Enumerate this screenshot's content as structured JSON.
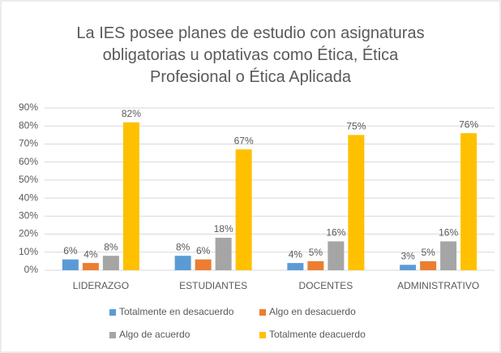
{
  "chart_data": {
    "type": "bar",
    "title": "La IES posee planes de estudio con asignaturas obligatorias u optativas como Ética, Ética Profesional o Ética Aplicada",
    "categories": [
      "LIDERAZGO",
      "ESTUDIANTES",
      "DOCENTES",
      "ADMINISTRATIVO"
    ],
    "series": [
      {
        "name": "Totalmente en desacuerdo",
        "color": "#5b9bd5",
        "values": [
          6,
          8,
          4,
          3
        ],
        "value_labels": [
          "6%",
          "8%",
          "4%",
          "3%"
        ]
      },
      {
        "name": "Algo en desacuerdo",
        "color": "#ed7d31",
        "values": [
          4,
          6,
          5,
          5
        ],
        "value_labels": [
          "4%",
          "6%",
          "5%",
          "5%"
        ]
      },
      {
        "name": "Algo de acuerdo",
        "color": "#a5a5a5",
        "values": [
          8,
          18,
          16,
          16
        ],
        "value_labels": [
          "8%",
          "18%",
          "16%",
          "16%"
        ]
      },
      {
        "name": "Totalmente deacuerdo",
        "color": "#ffc000",
        "values": [
          82,
          67,
          75,
          76
        ],
        "value_labels": [
          "82%",
          "67%",
          "75%",
          "76%"
        ]
      }
    ],
    "ylim": [
      0,
      90
    ],
    "yticks": [
      {
        "value": 0,
        "label": "0%"
      },
      {
        "value": 10,
        "label": "10%"
      },
      {
        "value": 20,
        "label": "20%"
      },
      {
        "value": 30,
        "label": "30%"
      },
      {
        "value": 40,
        "label": "40%"
      },
      {
        "value": 50,
        "label": "50%"
      },
      {
        "value": 60,
        "label": "60%"
      },
      {
        "value": 70,
        "label": "70%"
      },
      {
        "value": 80,
        "label": "80%"
      },
      {
        "value": 90,
        "label": "90%"
      }
    ],
    "grid": true
  }
}
